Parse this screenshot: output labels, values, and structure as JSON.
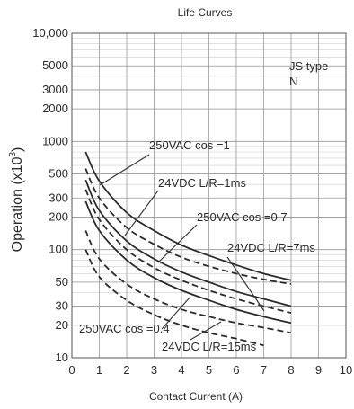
{
  "chart_data": {
    "type": "line",
    "title": "Life Curves",
    "xlabel": "Contact Current (A)",
    "ylabel": "Operation (x10",
    "ylabel_superscript": "3",
    "ylabel_close": ")",
    "xlim": [
      0,
      10
    ],
    "ylim": [
      10,
      10000
    ],
    "y_scale": "log",
    "grid": true,
    "x_ticks": [
      "0",
      "1",
      "2",
      "3",
      "4",
      "5",
      "6",
      "7",
      "8",
      "9",
      "10"
    ],
    "y_ticks": [
      {
        "value": 10,
        "label": "10"
      },
      {
        "value": 20,
        "label": "20"
      },
      {
        "value": 30,
        "label": "30"
      },
      {
        "value": 50,
        "label": "50"
      },
      {
        "value": 100,
        "label": "100"
      },
      {
        "value": 200,
        "label": "200"
      },
      {
        "value": 300,
        "label": "300"
      },
      {
        "value": 500,
        "label": "500"
      },
      {
        "value": 1000,
        "label": "1000"
      },
      {
        "value": 2000,
        "label": "2000"
      },
      {
        "value": 3000,
        "label": "3000"
      },
      {
        "value": 5000,
        "label": "5000"
      },
      {
        "value": 10000,
        "label": "10,000"
      }
    ],
    "note_line1": "JS type",
    "note_line2": "N",
    "series": [
      {
        "name": "250VAC cos =1",
        "style": "solid",
        "color": "#2b2b2b",
        "x": [
          0.5,
          1,
          2,
          3,
          4,
          5,
          6,
          7,
          8
        ],
        "y": [
          800,
          430,
          220,
          150,
          110,
          88,
          72,
          60,
          52
        ]
      },
      {
        "name": "24VDC L/R=1ms",
        "style": "dashed",
        "color": "#2b2b2b",
        "x": [
          0.5,
          1,
          2,
          3,
          4,
          5,
          6,
          7,
          8
        ],
        "y": [
          560,
          300,
          160,
          112,
          85,
          70,
          60,
          53,
          48
        ]
      },
      {
        "name": "250VAC cos =0.7",
        "style": "solid",
        "color": "#2b2b2b",
        "x": [
          0.5,
          1,
          2,
          3,
          4,
          5,
          6,
          7,
          8
        ],
        "y": [
          440,
          230,
          120,
          82,
          62,
          50,
          41,
          35,
          30
        ]
      },
      {
        "name": "24VDC L/R=7ms",
        "style": "dashed",
        "color": "#2b2b2b",
        "x": [
          0.5,
          1,
          2,
          3,
          4,
          5,
          6,
          7,
          8
        ],
        "y": [
          360,
          190,
          100,
          68,
          52,
          42,
          35,
          30,
          26
        ]
      },
      {
        "name": "250VAC cos =0.4",
        "style": "solid",
        "color": "#2b2b2b",
        "x": [
          0.5,
          1,
          2,
          3,
          4,
          5,
          6,
          7,
          8
        ],
        "y": [
          280,
          150,
          80,
          55,
          42,
          34,
          28,
          24,
          21
        ]
      },
      {
        "name": "24VDC L/R=15ms",
        "style": "dashed",
        "color": "#2b2b2b",
        "x": [
          0.5,
          1,
          2,
          3,
          4,
          5,
          6,
          7,
          8
        ],
        "y": [
          150,
          82,
          48,
          35,
          28,
          24,
          21,
          19,
          17
        ]
      },
      {
        "name": "",
        "style": "dashed",
        "color": "#2b2b2b",
        "x": [
          0.5,
          1,
          2,
          3,
          4,
          5,
          6,
          7
        ],
        "y": [
          100,
          56,
          34,
          25,
          20,
          17,
          15,
          13
        ]
      }
    ],
    "annotations": [
      {
        "text": "250VAC cos =1",
        "series": 0
      },
      {
        "text": "24VDC L/R=1ms",
        "series": 1
      },
      {
        "text": "250VAC cos =0.7",
        "series": 2
      },
      {
        "text": "24VDC L/R=7ms",
        "series": 3
      },
      {
        "text": "250VAC cos =0.4",
        "series": 4
      },
      {
        "text": "24VDC L/R=15ms",
        "series": 5
      }
    ]
  }
}
